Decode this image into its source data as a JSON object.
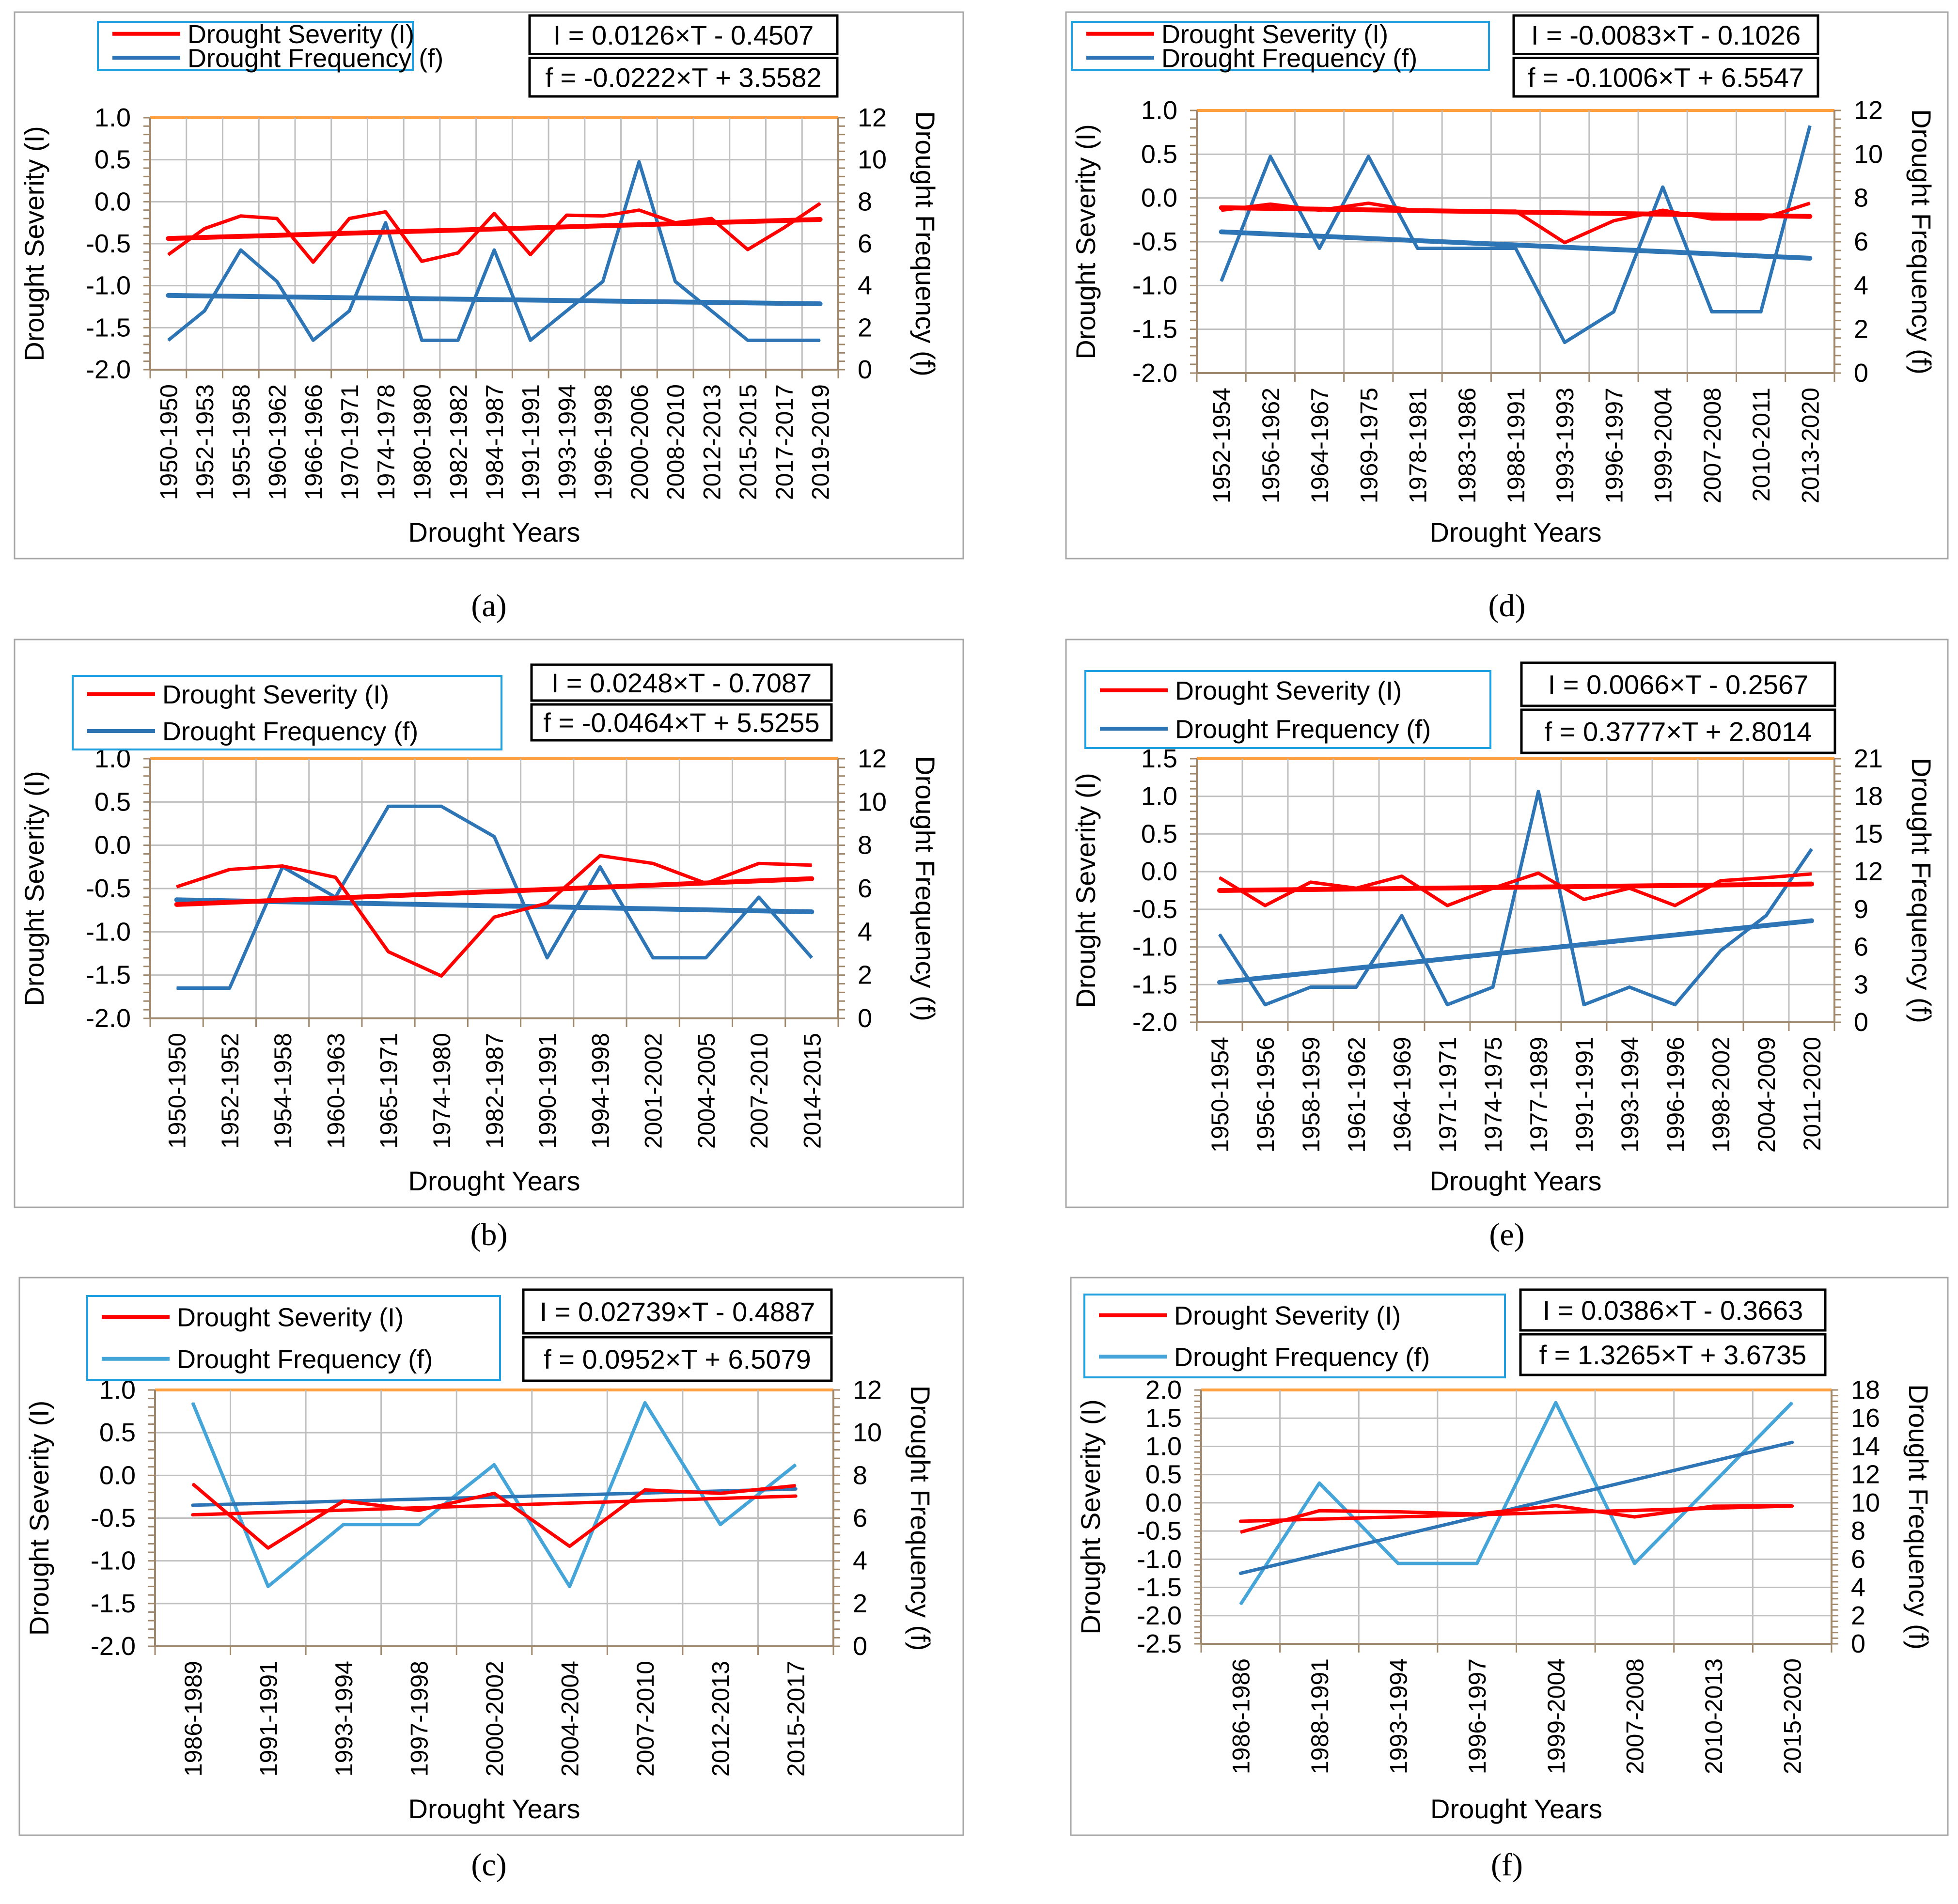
{
  "chart_data": [
    {
      "id": "a",
      "type": "line",
      "panel_label": "(a)",
      "xlabel": "Drought Years",
      "ylabel_left": "Drought Severity (I)",
      "ylabel_right": "Drought Frequency (f)",
      "left_ylim": [
        -2.0,
        1.0
      ],
      "left_ticks": [
        "1.0",
        "0.5",
        "0.0",
        "-0.5",
        "-1.0",
        "-1.5",
        "-2.0"
      ],
      "right_ylim": [
        0,
        12
      ],
      "right_ticks": [
        "12",
        "10",
        "8",
        "6",
        "4",
        "2",
        "0"
      ],
      "freq_color": "#2e75b6",
      "legend": [
        "Drought  Severity (I)",
        "Drought  Frequency (f)"
      ],
      "eq_severity": "I = 0.0126×T - 0.4507",
      "eq_frequency": "f = -0.0222×T + 3.5582",
      "categories": [
        "1950-1950",
        "1952-1953",
        "1955-1958",
        "1960-1962",
        "1966-1966",
        "1970-1971",
        "1974-1978",
        "1980-1980",
        "1982-1982",
        "1984-1987",
        "1991-1991",
        "1993-1994",
        "1996-1998",
        "2000-2006",
        "2008-2010",
        "2012-2013",
        "2015-2015",
        "2017-2017",
        "2019-2019"
      ],
      "series": [
        {
          "name": "Drought  Severity (I)",
          "axis": "left",
          "values": [
            -0.63,
            -0.32,
            -0.17,
            -0.2,
            -0.72,
            -0.2,
            -0.12,
            -0.71,
            -0.61,
            -0.14,
            -0.63,
            -0.16,
            -0.17,
            -0.1,
            -0.25,
            -0.2,
            -0.57,
            -0.31,
            -0.02
          ]
        },
        {
          "name": "Drought  Frequency (f)",
          "axis": "right",
          "values": [
            1.4,
            2.8,
            5.7,
            4.2,
            1.4,
            2.8,
            7.0,
            1.4,
            1.4,
            5.7,
            1.4,
            2.8,
            4.2,
            9.9,
            4.2,
            2.8,
            1.4,
            1.4,
            1.4
          ]
        }
      ]
    },
    {
      "id": "d",
      "type": "line",
      "panel_label": "(d)",
      "xlabel": "Drought Years",
      "ylabel_left": "Drought Severity (I)",
      "ylabel_right": "Drought Frequency (f)",
      "left_ylim": [
        -2.0,
        1.0
      ],
      "left_ticks": [
        "1.0",
        "0.5",
        "0.0",
        "-0.5",
        "-1.0",
        "-1.5",
        "-2.0"
      ],
      "right_ylim": [
        0,
        12
      ],
      "right_ticks": [
        "12",
        "10",
        "8",
        "6",
        "4",
        "2",
        "0"
      ],
      "freq_color": "#2e75b6",
      "legend": [
        "Drought  Severity (I)",
        "Drought  Frequency (f)"
      ],
      "eq_severity": "I = -0.0083×T - 0.1026",
      "eq_frequency": "f = -0.1006×T + 6.5547",
      "categories": [
        "1952-1954",
        "1956-1962",
        "1964-1967",
        "1969-1975",
        "1978-1981",
        "1983-1986",
        "1988-1991",
        "1993-1993",
        "1996-1997",
        "1999-2004",
        "2007-2008",
        "2010-2011",
        "2013-2020"
      ],
      "series": [
        {
          "name": "Drought  Severity (I)",
          "axis": "left",
          "values": [
            -0.14,
            -0.07,
            -0.14,
            -0.06,
            -0.15,
            -0.15,
            -0.15,
            -0.51,
            -0.26,
            -0.14,
            -0.24,
            -0.24,
            -0.06
          ]
        },
        {
          "name": "Drought  Frequency (f)",
          "axis": "right",
          "values": [
            4.2,
            9.9,
            5.7,
            9.9,
            5.7,
            5.7,
            5.7,
            1.4,
            2.8,
            8.5,
            2.8,
            2.8,
            11.3
          ]
        }
      ]
    },
    {
      "id": "b",
      "type": "line",
      "panel_label": "(b)",
      "xlabel": "Drought Years",
      "ylabel_left": "Drought Severity (I)",
      "ylabel_right": "Drought Frequency (f)",
      "left_ylim": [
        -2.0,
        1.0
      ],
      "left_ticks": [
        "1.0",
        "0.5",
        "0.0",
        "-0.5",
        "-1.0",
        "-1.5",
        "-2.0"
      ],
      "right_ylim": [
        0,
        12
      ],
      "right_ticks": [
        "12",
        "10",
        "8",
        "6",
        "4",
        "2",
        "0"
      ],
      "freq_color": "#2e75b6",
      "legend": [
        "Drought  Severity (I)",
        "Drought  Frequency (f)"
      ],
      "eq_severity": "I = 0.0248×T - 0.7087",
      "eq_frequency": "f = -0.0464×T + 5.5255",
      "categories": [
        "1950-1950",
        "1952-1952",
        "1954-1958",
        "1960-1963",
        "1965-1971",
        "1974-1980",
        "1982-1987",
        "1990-1991",
        "1994-1998",
        "2001-2002",
        "2004-2005",
        "2007-2010",
        "2014-2015"
      ],
      "series": [
        {
          "name": "Drought  Severity (I)",
          "axis": "left",
          "values": [
            -0.48,
            -0.28,
            -0.24,
            -0.37,
            -1.23,
            -1.51,
            -0.83,
            -0.67,
            -0.12,
            -0.21,
            -0.44,
            -0.21,
            -0.23
          ]
        },
        {
          "name": "Drought  Frequency (f)",
          "axis": "right",
          "values": [
            1.4,
            1.4,
            7.0,
            5.6,
            9.8,
            9.8,
            8.4,
            2.8,
            7.0,
            2.8,
            2.8,
            5.6,
            2.8
          ]
        }
      ]
    },
    {
      "id": "e",
      "type": "line",
      "panel_label": "(e)",
      "xlabel": "Drought Years",
      "ylabel_left": "Drought Severity (I)",
      "ylabel_right": "Drought Frequency (f)",
      "left_ylim": [
        -2.0,
        1.5
      ],
      "left_ticks": [
        "1.5",
        "1.0",
        "0.5",
        "0.0",
        "-0.5",
        "-1.0",
        "-1.5",
        "-2.0"
      ],
      "right_ylim": [
        0,
        21
      ],
      "right_ticks": [
        "21",
        "18",
        "15",
        "12",
        "9",
        "6",
        "3",
        "0"
      ],
      "freq_color": "#2e75b6",
      "legend": [
        "Drought  Severity (I)",
        "Drought  Frequency (f)"
      ],
      "eq_severity": "I = 0.0066×T - 0.2567",
      "eq_frequency": "f = 0.3777×T + 2.8014",
      "categories": [
        "1950-1954",
        "1956-1956",
        "1958-1959",
        "1961-1962",
        "1964-1969",
        "1971-1971",
        "1974-1975",
        "1977-1989",
        "1991-1991",
        "1993-1994",
        "1996-1996",
        "1998-2002",
        "2004-2009",
        "2011-2020"
      ],
      "series": [
        {
          "name": "Drought  Severity (I)",
          "axis": "left",
          "values": [
            -0.08,
            -0.45,
            -0.14,
            -0.22,
            -0.06,
            -0.45,
            -0.22,
            -0.02,
            -0.37,
            -0.22,
            -0.45,
            -0.12,
            -0.08,
            -0.03
          ]
        },
        {
          "name": "Drought  Frequency (f)",
          "axis": "right",
          "values": [
            7.0,
            1.4,
            2.8,
            2.8,
            8.5,
            1.4,
            2.8,
            18.4,
            1.4,
            2.8,
            1.4,
            5.7,
            8.5,
            13.8
          ]
        }
      ]
    },
    {
      "id": "c",
      "type": "line",
      "panel_label": "(c)",
      "xlabel": "Drought Years",
      "ylabel_left": "Drought Severity (I)",
      "ylabel_right": "Drought Frequency (f)",
      "left_ylim": [
        -2.0,
        1.0
      ],
      "left_ticks": [
        "1.0",
        "0.5",
        "0.0",
        "-0.5",
        "-1.0",
        "-1.5",
        "-2.0"
      ],
      "right_ylim": [
        0,
        12
      ],
      "right_ticks": [
        "12",
        "10",
        "8",
        "6",
        "4",
        "2",
        "0"
      ],
      "freq_color": "#45a5d8",
      "legend": [
        "Drought  Severity (I)",
        "Drought  Frequency (f)"
      ],
      "eq_severity": "I = 0.02739×T - 0.4887",
      "eq_frequency": "f = 0.0952×T + 6.5079",
      "categories": [
        "1986-1989",
        "1991-1991",
        "1993-1994",
        "1997-1998",
        "2000-2002",
        "2004-2004",
        "2007-2010",
        "2012-2013",
        "2015-2017"
      ],
      "series": [
        {
          "name": "Drought  Severity (I)",
          "axis": "left",
          "values": [
            -0.1,
            -0.85,
            -0.3,
            -0.41,
            -0.21,
            -0.83,
            -0.17,
            -0.21,
            -0.12
          ]
        },
        {
          "name": "Drought  Frequency (f)",
          "axis": "right",
          "values": [
            11.4,
            2.8,
            5.7,
            5.7,
            8.5,
            2.8,
            11.4,
            5.7,
            8.5
          ]
        }
      ]
    },
    {
      "id": "f",
      "type": "line",
      "panel_label": "(f)",
      "xlabel": "Drought Years",
      "ylabel_left": "Drought Severity (I)",
      "ylabel_right": "Drought Frequency (f)",
      "left_ylim": [
        -2.5,
        2.0
      ],
      "left_ticks": [
        "2.0",
        "1.5",
        "1.0",
        "0.5",
        "0.0",
        "-0.5",
        "-1.0",
        "-1.5",
        "-2.0",
        "-2.5"
      ],
      "right_ylim": [
        0,
        18
      ],
      "right_ticks": [
        "18",
        "16",
        "14",
        "12",
        "10",
        "8",
        "6",
        "4",
        "2",
        "0"
      ],
      "freq_color": "#45a5d8",
      "legend": [
        "Drought  Severity (I)",
        "Drought  Frequency (f)"
      ],
      "eq_severity": "I = 0.0386×T - 0.3663",
      "eq_frequency": "f = 1.3265×T + 3.6735",
      "categories": [
        "1986-1986",
        "1988-1991",
        "1993-1994",
        "1996-1997",
        "1999-2004",
        "2007-2008",
        "2010-2013",
        "2015-2020"
      ],
      "series": [
        {
          "name": "Drought  Severity (I)",
          "axis": "left",
          "values": [
            -0.52,
            -0.14,
            -0.16,
            -0.2,
            -0.05,
            -0.25,
            -0.06,
            -0.05
          ]
        },
        {
          "name": "Drought  Frequency (f)",
          "axis": "right",
          "values": [
            2.8,
            11.4,
            5.7,
            5.7,
            17.1,
            5.7,
            11.4,
            17.1
          ]
        }
      ]
    }
  ]
}
